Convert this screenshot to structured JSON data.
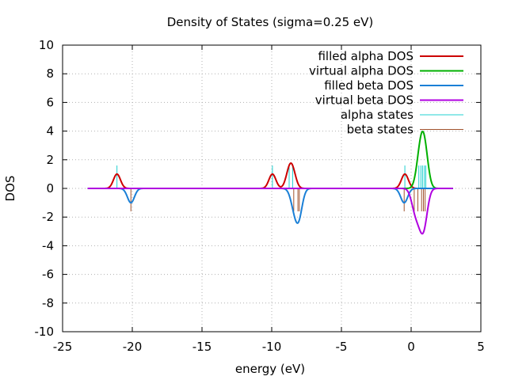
{
  "chart_data": {
    "type": "line",
    "title": "Density of States (sigma=0.25 eV)",
    "xlabel": "energy (eV)",
    "ylabel": "DOS",
    "xlim": [
      -25,
      5
    ],
    "ylim": [
      -10,
      10
    ],
    "xticks": [
      -25,
      -20,
      -15,
      -10,
      -5,
      0,
      5
    ],
    "yticks": [
      -10,
      -8,
      -6,
      -4,
      -2,
      0,
      2,
      4,
      6,
      8,
      10
    ],
    "xtick_labels": [
      "-25",
      "-20",
      "-15",
      "-10",
      "-5",
      "0",
      "5"
    ],
    "ytick_labels": [
      "-10",
      "-8",
      "-6",
      "-4",
      "-2",
      "0",
      "2",
      "4",
      "6",
      "8",
      "10"
    ],
    "grid": true,
    "legend_position": "top-right",
    "x_range_plotted": [
      -23.2,
      3.0
    ],
    "sigma": 0.25,
    "series": [
      {
        "name": "filled alpha DOS",
        "color": "#cc0000",
        "kind": "dos",
        "sign": 1,
        "states": [
          -21.1,
          -9.95,
          -8.75,
          -8.5,
          -0.45
        ]
      },
      {
        "name": "virtual alpha DOS",
        "color": "#00b000",
        "kind": "dos",
        "sign": 1,
        "states": [
          0.55,
          0.7,
          0.82,
          0.95,
          1.05
        ]
      },
      {
        "name": "filled beta DOS",
        "color": "#1a7fd6",
        "kind": "dos",
        "sign": -1,
        "states": [
          -20.1,
          -8.42,
          -8.12,
          -8.02,
          -0.5
        ]
      },
      {
        "name": "virtual beta DOS",
        "color": "#b000e0",
        "kind": "dos",
        "sign": -1,
        "states": [
          0.22,
          0.48,
          0.75,
          0.88,
          1.0
        ]
      },
      {
        "name": "alpha states",
        "color": "#20d0d0",
        "kind": "sticks",
        "sign": 1,
        "x": [
          -21.1,
          -9.95,
          -8.75,
          -8.5,
          -0.45,
          0.55,
          0.7,
          0.82,
          0.95,
          1.05
        ],
        "height": 1.6
      },
      {
        "name": "beta states",
        "color": "#a0522d",
        "kind": "sticks",
        "sign": -1,
        "x": [
          -20.1,
          -8.42,
          -8.12,
          -8.02,
          -0.5,
          0.22,
          0.48,
          0.75,
          0.88,
          1.0
        ],
        "height": 1.6
      }
    ]
  }
}
